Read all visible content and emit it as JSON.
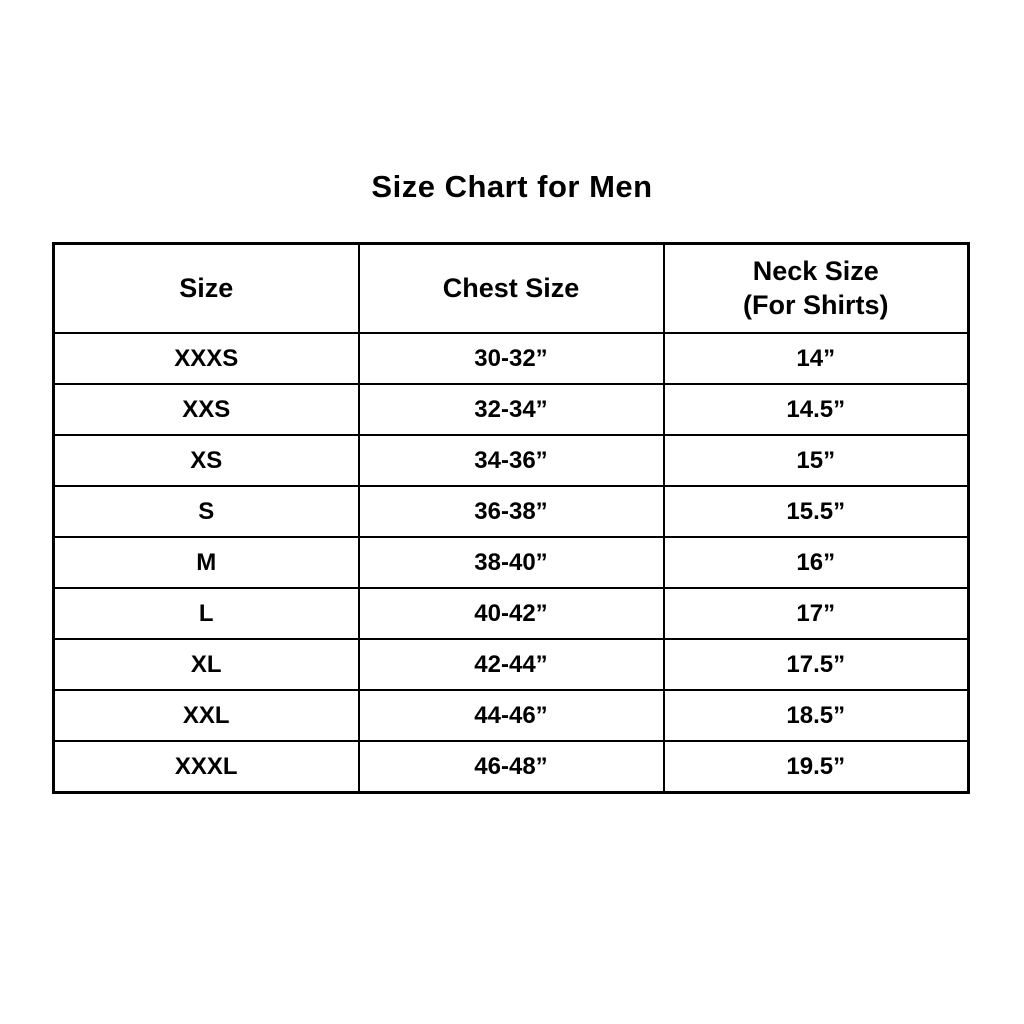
{
  "chart_data": {
    "type": "table",
    "title": "Size Chart for Men",
    "columns": [
      "Size",
      "Chest Size",
      "Neck Size (For Shirts)"
    ],
    "rows": [
      [
        "XXXS",
        "30-32”",
        "14”"
      ],
      [
        "XXS",
        "32-34”",
        "14.5”"
      ],
      [
        "XS",
        "34-36”",
        "15”"
      ],
      [
        "S",
        "36-38”",
        "15.5”"
      ],
      [
        "M",
        "38-40”",
        "16”"
      ],
      [
        "L",
        "40-42”",
        "17”"
      ],
      [
        "XL",
        "42-44”",
        "17.5”"
      ],
      [
        "XXL",
        "44-46”",
        "18.5”"
      ],
      [
        "XXXL",
        "46-48”",
        "19.5”"
      ]
    ]
  },
  "ui": {
    "headers": {
      "size": "Size",
      "chest": "Chest Size",
      "neck_line1": "Neck Size",
      "neck_line2": "(For Shirts)"
    }
  },
  "colors": {
    "background": "#ffffff",
    "text": "#000000",
    "border": "#000000"
  }
}
